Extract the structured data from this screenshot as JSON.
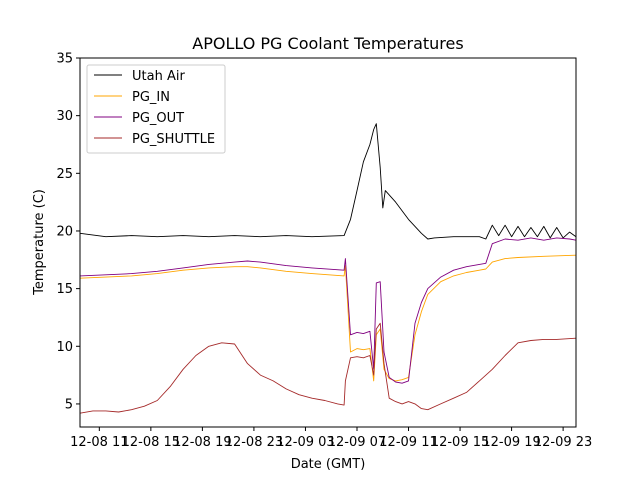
{
  "chart_data": {
    "type": "line",
    "title": "APOLLO PG Coolant Temperatures",
    "xlabel": "Date (GMT)",
    "ylabel": "Temperature (C)",
    "ylim": [
      3,
      35
    ],
    "xlim_hours": [
      0,
      38.5
    ],
    "x_unit": "hours since 2025-12-08 09:30 GMT (tick labels show date and hour)",
    "yticks": [
      5,
      10,
      15,
      20,
      25,
      30,
      35
    ],
    "xticks": [
      {
        "hours": 1.5,
        "label": "12-08 11"
      },
      {
        "hours": 5.5,
        "label": "12-08 15"
      },
      {
        "hours": 9.5,
        "label": "12-08 19"
      },
      {
        "hours": 13.5,
        "label": "12-08 23"
      },
      {
        "hours": 17.5,
        "label": "12-09 03"
      },
      {
        "hours": 21.5,
        "label": "12-09 07"
      },
      {
        "hours": 25.5,
        "label": "12-09 11"
      },
      {
        "hours": 29.5,
        "label": "12-09 15"
      },
      {
        "hours": 33.5,
        "label": "12-09 19"
      },
      {
        "hours": 37.5,
        "label": "12-09 23"
      }
    ],
    "legend_position": "top-left",
    "series": [
      {
        "name": "Utah Air",
        "color": "#000000",
        "x": [
          0,
          2,
          4,
          6,
          8,
          10,
          12,
          14,
          16,
          18,
          20.5,
          21,
          21.5,
          22,
          22.5,
          22.8,
          23.0,
          23.3,
          23.5,
          23.7,
          24.5,
          25.5,
          26.5,
          27.0,
          27.5,
          29,
          31,
          31.5,
          32,
          32.5,
          33,
          33.5,
          34,
          34.5,
          35,
          35.5,
          36,
          36.5,
          37,
          37.5,
          38,
          38.5
        ],
        "values": [
          19.8,
          19.5,
          19.6,
          19.5,
          19.6,
          19.5,
          19.6,
          19.5,
          19.6,
          19.5,
          19.6,
          21.0,
          23.5,
          26.0,
          27.5,
          28.8,
          29.3,
          25.5,
          22.0,
          23.5,
          22.5,
          21.0,
          19.8,
          19.3,
          19.4,
          19.5,
          19.5,
          19.3,
          20.5,
          19.6,
          20.5,
          19.5,
          20.4,
          19.5,
          20.3,
          19.5,
          20.4,
          19.4,
          20.3,
          19.4,
          19.9,
          19.5
        ]
      },
      {
        "name": "PG_IN",
        "color": "#ffa500",
        "x": [
          0,
          2,
          4,
          6,
          8,
          10,
          12,
          13,
          14,
          16,
          18,
          20.5,
          20.6,
          21.0,
          21.5,
          22.0,
          22.5,
          22.8,
          23.0,
          23.3,
          23.6,
          24.0,
          24.5,
          25.0,
          25.5,
          26.0,
          26.5,
          27.0,
          28,
          29,
          30,
          31,
          31.5,
          32,
          33,
          34,
          36,
          38.5
        ],
        "values": [
          15.9,
          16.0,
          16.1,
          16.3,
          16.6,
          16.8,
          16.9,
          16.9,
          16.8,
          16.5,
          16.3,
          16.1,
          17.0,
          9.5,
          9.8,
          9.7,
          9.8,
          7.0,
          11.0,
          11.5,
          8.0,
          7.2,
          7.0,
          7.1,
          7.3,
          11.0,
          13.0,
          14.5,
          15.6,
          16.1,
          16.4,
          16.6,
          16.7,
          17.3,
          17.6,
          17.7,
          17.8,
          17.9
        ]
      },
      {
        "name": "PG_OUT",
        "color": "#800080",
        "x": [
          0,
          2,
          4,
          6,
          8,
          10,
          12,
          13,
          14,
          16,
          18,
          20.5,
          20.6,
          21.0,
          21.5,
          22.0,
          22.5,
          22.8,
          23.0,
          23.3,
          23.6,
          24.0,
          24.5,
          25.0,
          25.5,
          26.0,
          26.5,
          27.0,
          28,
          29,
          30,
          31,
          31.5,
          32,
          33,
          34,
          35,
          36,
          37,
          38,
          38.5
        ],
        "values": [
          16.1,
          16.2,
          16.3,
          16.5,
          16.8,
          17.1,
          17.3,
          17.4,
          17.3,
          17.0,
          16.8,
          16.6,
          17.6,
          11.0,
          11.2,
          11.1,
          11.3,
          8.0,
          15.5,
          15.6,
          9.5,
          7.3,
          6.9,
          6.8,
          7.0,
          12.0,
          13.8,
          15.0,
          16.0,
          16.6,
          16.9,
          17.1,
          17.2,
          18.9,
          19.3,
          19.2,
          19.4,
          19.2,
          19.4,
          19.3,
          19.2
        ]
      },
      {
        "name": "PG_SHUTTLE",
        "color": "#a52a2a",
        "x": [
          0,
          1,
          2,
          3,
          4,
          5,
          6,
          7,
          8,
          9,
          10,
          11,
          12,
          13,
          14,
          15,
          16,
          17,
          18,
          19,
          20,
          20.5,
          20.6,
          21.0,
          21.5,
          22.0,
          22.5,
          22.8,
          23.0,
          23.3,
          23.6,
          24.0,
          24.5,
          25.0,
          25.5,
          26.0,
          26.5,
          27.0,
          28,
          29,
          30,
          31,
          32,
          33,
          34,
          35,
          36,
          37,
          38.5
        ],
        "values": [
          4.2,
          4.4,
          4.4,
          4.3,
          4.5,
          4.8,
          5.3,
          6.5,
          8.0,
          9.2,
          10.0,
          10.3,
          10.2,
          8.5,
          7.5,
          7.0,
          6.3,
          5.8,
          5.5,
          5.3,
          5.0,
          4.9,
          7.0,
          9.0,
          9.1,
          9.0,
          9.2,
          7.5,
          11.5,
          12.0,
          8.5,
          5.5,
          5.2,
          5.0,
          5.2,
          5.0,
          4.6,
          4.5,
          5.0,
          5.5,
          6.0,
          7.0,
          8.0,
          9.2,
          10.3,
          10.5,
          10.6,
          10.6,
          10.7
        ]
      }
    ]
  }
}
